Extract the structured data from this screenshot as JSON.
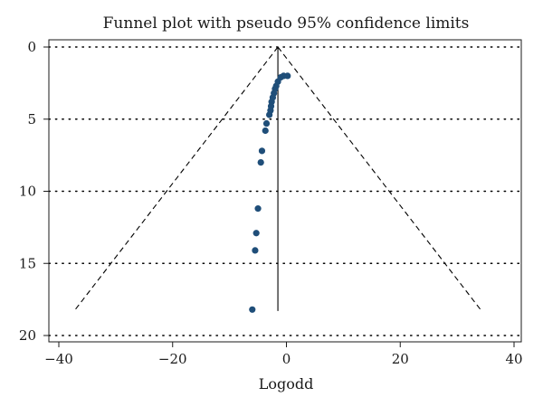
{
  "chart_data": {
    "type": "scatter",
    "title": "Funnel plot with pseudo 95% confidence limits",
    "xlabel": "Logodd",
    "ylabel": "",
    "xlim": [
      -40,
      40
    ],
    "ylim": [
      0,
      20
    ],
    "y_reversed": true,
    "x_ticks": [
      -40,
      -20,
      0,
      20,
      40
    ],
    "x_tick_labels": [
      "−40",
      "−20",
      "0",
      "20",
      "40"
    ],
    "y_ticks": [
      0,
      5,
      10,
      15,
      20
    ],
    "y_tick_labels": [
      "0",
      "5",
      "10",
      "15",
      "20"
    ],
    "grid": "horizontal dotted",
    "legend": "none",
    "pooled_estimate": -1.5,
    "funnel_limits": {
      "apex": [
        -1.5,
        0
      ],
      "bottom_y": 18.3,
      "bottom_left_x": -37.3,
      "bottom_right_x": 34.3
    },
    "points": [
      {
        "x": 0.2,
        "y": 2.0
      },
      {
        "x": -0.5,
        "y": 2.0
      },
      {
        "x": -1.0,
        "y": 2.1
      },
      {
        "x": -1.5,
        "y": 2.4
      },
      {
        "x": -1.8,
        "y": 2.7
      },
      {
        "x": -2.0,
        "y": 2.9
      },
      {
        "x": -2.2,
        "y": 3.2
      },
      {
        "x": -2.4,
        "y": 3.5
      },
      {
        "x": -2.6,
        "y": 3.8
      },
      {
        "x": -2.7,
        "y": 4.1
      },
      {
        "x": -2.8,
        "y": 4.4
      },
      {
        "x": -3.0,
        "y": 4.7
      },
      {
        "x": -3.5,
        "y": 5.3
      },
      {
        "x": -3.7,
        "y": 5.8
      },
      {
        "x": -4.3,
        "y": 7.2
      },
      {
        "x": -4.5,
        "y": 8.0
      },
      {
        "x": -5.0,
        "y": 11.2
      },
      {
        "x": -5.3,
        "y": 12.9
      },
      {
        "x": -5.5,
        "y": 14.1
      },
      {
        "x": -6.0,
        "y": 18.2
      }
    ],
    "colors": {
      "points": "#1f4e79",
      "lines": "#000000",
      "grid": "#000000"
    }
  }
}
